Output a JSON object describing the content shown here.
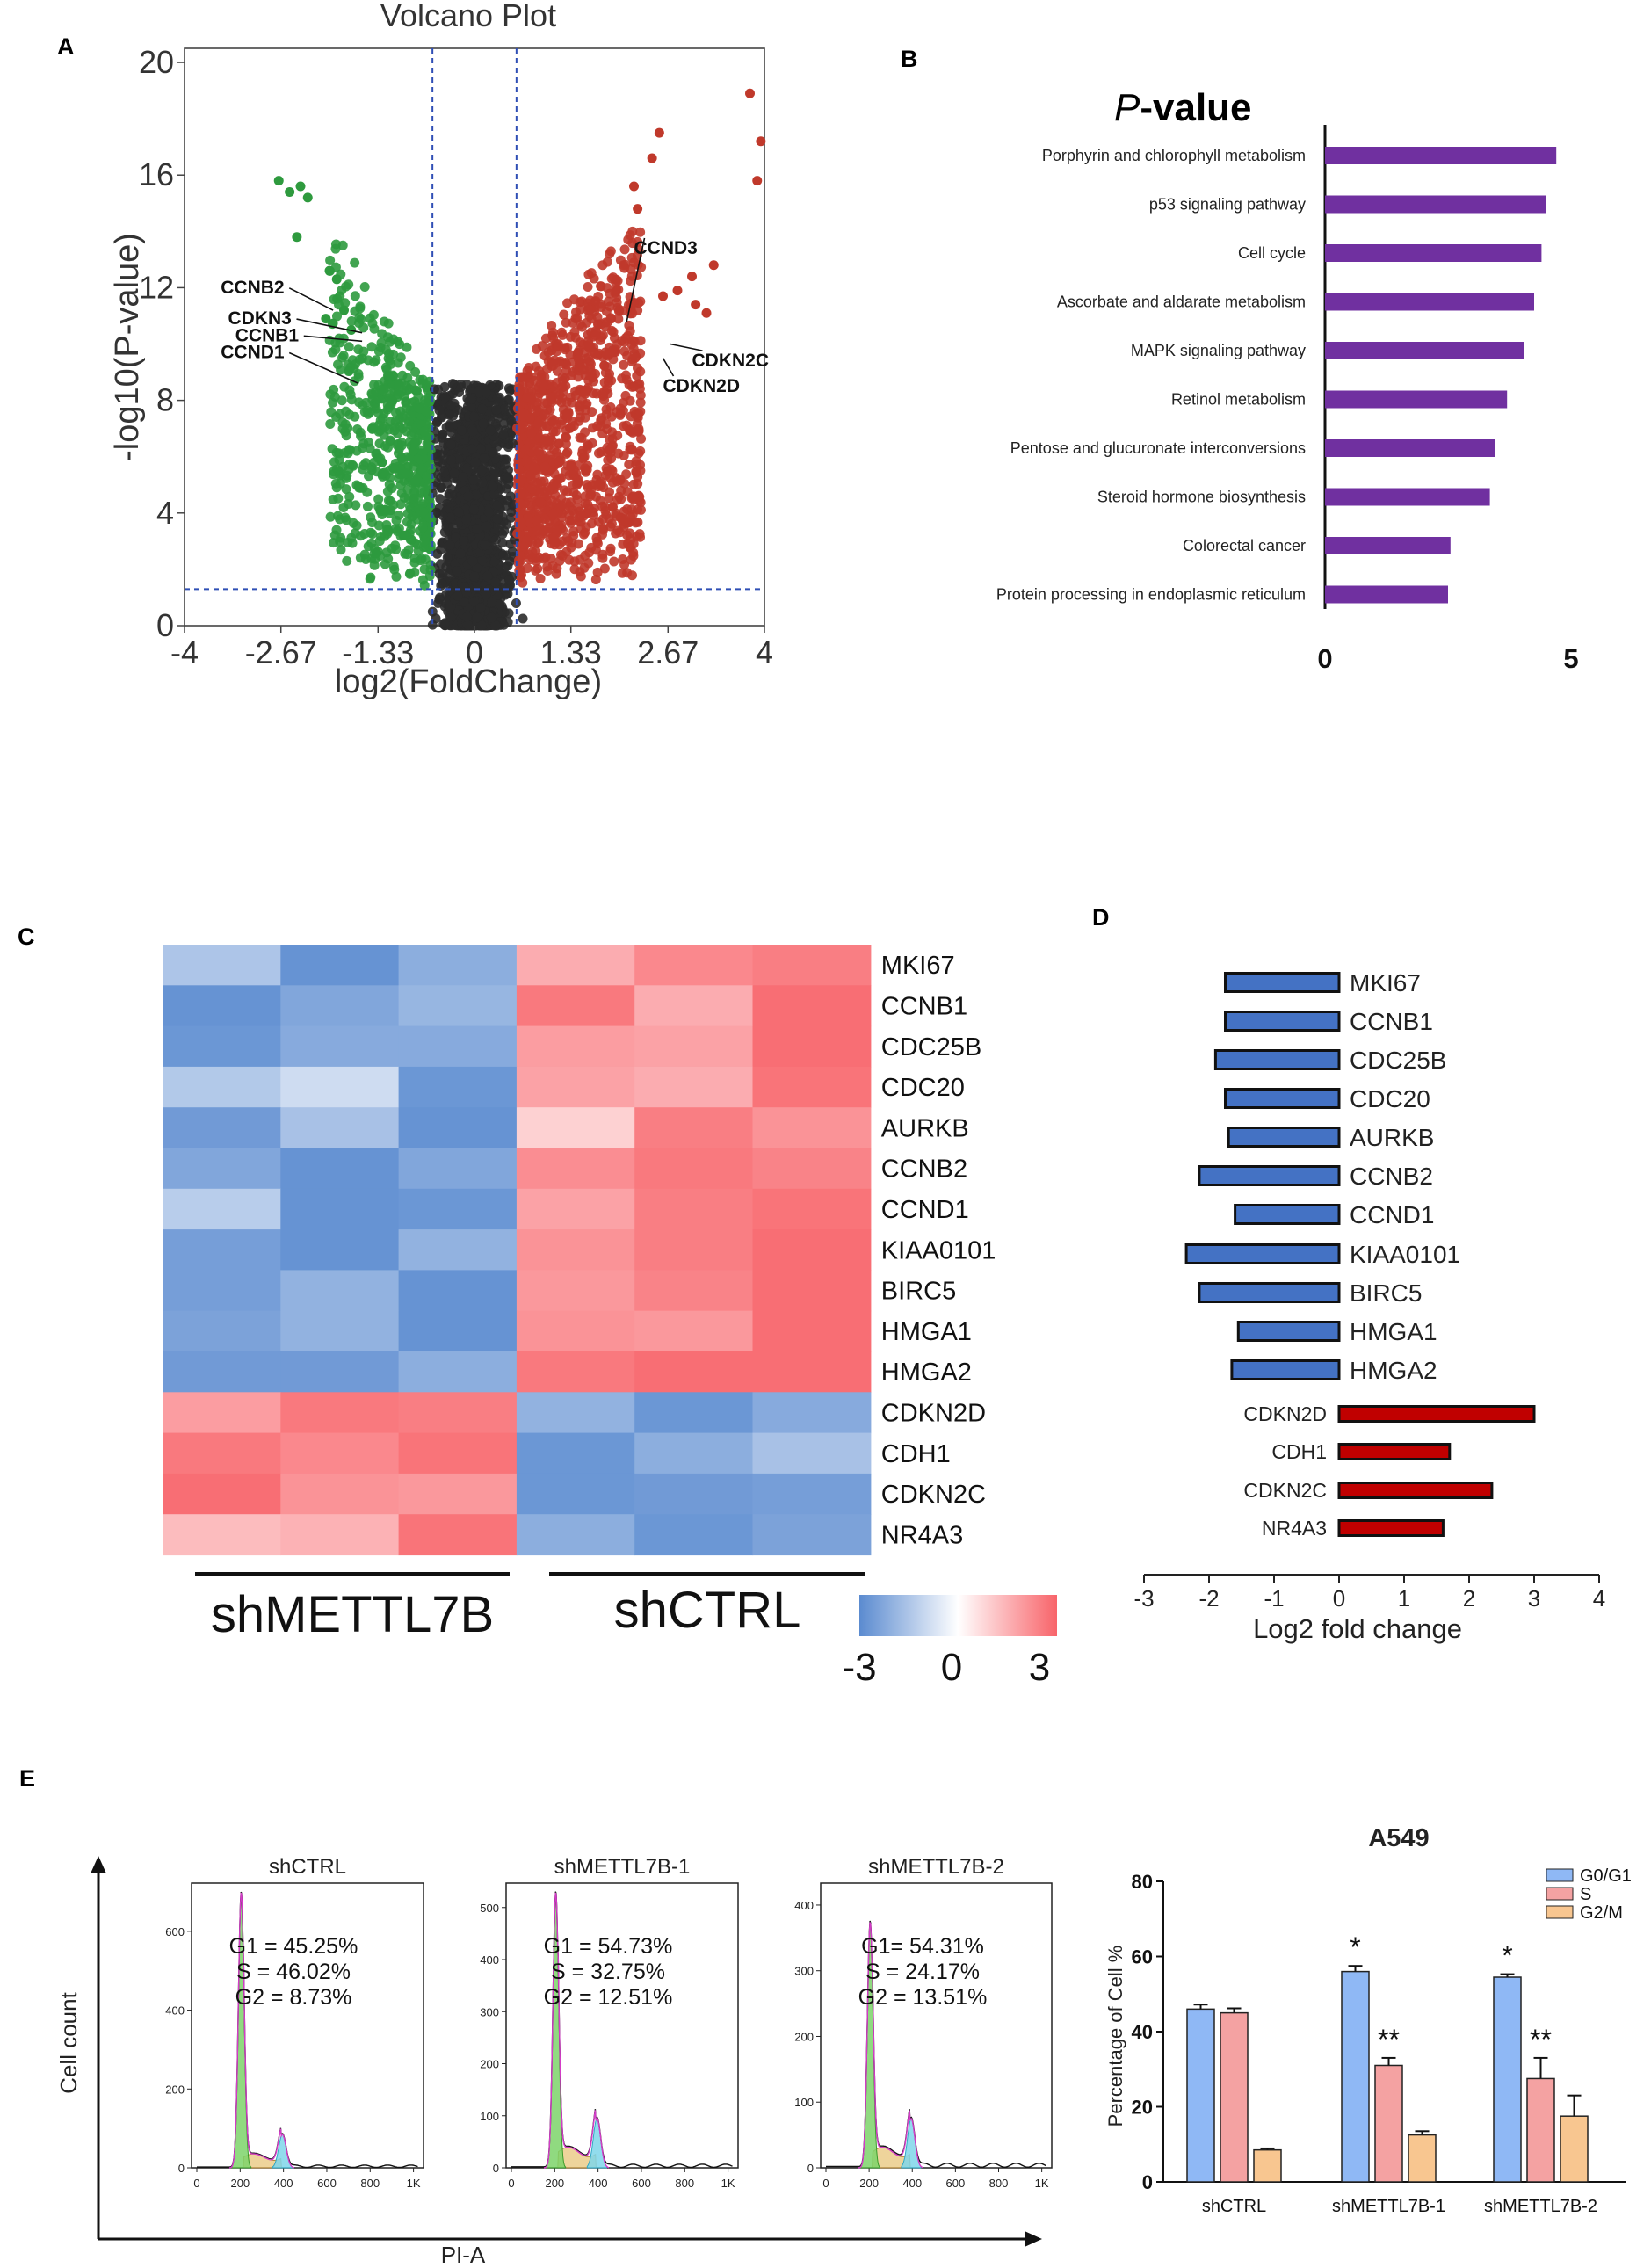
{
  "panel_labels": [
    "A",
    "B",
    "C",
    "D",
    "E"
  ],
  "chart_data": [
    {
      "id": "A",
      "type": "scatter",
      "title": "Volcano Plot",
      "xlabel": "log2(FoldChange)",
      "ylabel": "-log10(P-value)",
      "xlim": [
        -4,
        4
      ],
      "ylim": [
        0,
        20.5
      ],
      "xticks": [
        "-4",
        "-2.67",
        "-1.33",
        "0",
        "1.33",
        "2.67",
        "4"
      ],
      "xtick_values": [
        -4,
        -2.67,
        -1.33,
        0,
        1.33,
        2.67,
        4
      ],
      "yticks": [
        "0",
        "4",
        "8",
        "12",
        "16",
        "20"
      ],
      "ytick_values": [
        0,
        4,
        8,
        12,
        16,
        20
      ],
      "thresholds": {
        "fc": [
          -0.58,
          0.58
        ],
        "p": 1.3
      },
      "colors": {
        "down": "#2e9a3e",
        "ns": "#2b2b2b",
        "up": "#c0392b",
        "threshold": "#2f4fb5"
      },
      "highlight_points": [
        {
          "name": "down",
          "points": [
            [
              -2.7,
              15.8
            ],
            [
              -2.55,
              15.4
            ],
            [
              -2.4,
              15.6
            ],
            [
              -2.3,
              15.2
            ],
            [
              -2.45,
              13.8
            ],
            [
              -2.0,
              12.6
            ],
            [
              -1.9,
              12.3
            ],
            [
              -1.8,
              11.2
            ],
            [
              -2.05,
              10.9
            ],
            [
              -1.7,
              10.5
            ]
          ]
        },
        {
          "name": "up",
          "points": [
            [
              3.8,
              18.9
            ],
            [
              3.95,
              17.2
            ],
            [
              3.9,
              15.8
            ],
            [
              2.55,
              17.5
            ],
            [
              2.45,
              16.6
            ],
            [
              2.2,
              15.6
            ],
            [
              2.25,
              14.8
            ],
            [
              3.3,
              12.8
            ],
            [
              3.0,
              12.4
            ],
            [
              2.8,
              11.9
            ],
            [
              3.05,
              11.4
            ],
            [
              3.2,
              11.1
            ],
            [
              2.6,
              11.7
            ]
          ]
        }
      ],
      "annotations": [
        {
          "text": "CCNB2",
          "at": [
            -1.95,
            11.2
          ],
          "label": [
            -3.5,
            11.8
          ]
        },
        {
          "text": "CDKN3",
          "at": [
            -1.55,
            10.4
          ],
          "label": [
            -3.4,
            10.7
          ]
        },
        {
          "text": "CCNB1",
          "at": [
            -1.55,
            10.1
          ],
          "label": [
            -3.3,
            10.1
          ]
        },
        {
          "text": "CCND1",
          "at": [
            -1.6,
            8.6
          ],
          "label": [
            -3.5,
            9.5
          ]
        },
        {
          "text": "CCND3",
          "at": [
            2.1,
            10.8
          ],
          "label": [
            2.2,
            13.2
          ]
        },
        {
          "text": "CDKN2C",
          "at": [
            2.7,
            10.0
          ],
          "label": [
            3.0,
            9.2
          ]
        },
        {
          "text": "CDKN2D",
          "at": [
            2.6,
            9.5
          ],
          "label": [
            2.6,
            8.3
          ]
        }
      ]
    },
    {
      "id": "B",
      "type": "bar",
      "orientation": "horizontal",
      "title_italic": "P",
      "title_rest": "-value",
      "categories": [
        "Porphyrin and chlorophyll metabolism",
        "p53 signaling pathway",
        "Cell cycle",
        "Ascorbate and aldarate metabolism",
        "MAPK signaling pathway",
        "Retinol metabolism",
        "Pentose and glucuronate interconversions",
        "Steroid hormone biosynthesis",
        "Colorectal cancer",
        "Protein processing in endoplasmic reticulum"
      ],
      "values": [
        4.7,
        4.5,
        4.4,
        4.25,
        4.05,
        3.7,
        3.45,
        3.35,
        2.55,
        2.5
      ],
      "xlim": [
        0,
        5
      ],
      "xticks": [
        "0",
        "5"
      ],
      "color": "#7030a0"
    },
    {
      "id": "C",
      "type": "heatmap",
      "rows": [
        "MKI67",
        "CCNB1",
        "CDC25B",
        "CDC20",
        "AURKB",
        "CCNB2",
        "CCND1",
        "KIAA0101",
        "BIRC5",
        "HMGA1",
        "HMGA2",
        "CDKN2D",
        "CDH1",
        "CDKN2C",
        "NR4A3"
      ],
      "groups": [
        "shMETTL7B",
        "shCTRL"
      ],
      "columns_per_group": 3,
      "values": [
        [
          -1.5,
          -2.8,
          -2.1,
          1.6,
          2.3,
          2.5
        ],
        [
          -2.8,
          -2.3,
          -1.9,
          2.6,
          1.6,
          2.8
        ],
        [
          -2.7,
          -2.2,
          -2.2,
          1.9,
          1.8,
          2.8
        ],
        [
          -1.4,
          -0.9,
          -2.7,
          1.8,
          1.6,
          2.7
        ],
        [
          -2.6,
          -1.6,
          -2.8,
          0.9,
          2.5,
          2.1
        ],
        [
          -2.3,
          -2.8,
          -2.3,
          2.2,
          2.6,
          2.4
        ],
        [
          -1.3,
          -2.8,
          -2.7,
          1.8,
          2.5,
          2.7
        ],
        [
          -2.5,
          -2.8,
          -2.0,
          2.1,
          2.5,
          2.8
        ],
        [
          -2.5,
          -2.0,
          -2.8,
          2.0,
          2.4,
          2.8
        ],
        [
          -2.4,
          -2.0,
          -2.8,
          2.1,
          2.0,
          2.8
        ],
        [
          -2.6,
          -2.6,
          -2.1,
          2.6,
          2.8,
          2.8
        ],
        [
          1.9,
          2.6,
          2.5,
          -2.0,
          -2.7,
          -2.2
        ],
        [
          2.6,
          2.3,
          2.7,
          -2.7,
          -2.1,
          -1.6
        ],
        [
          2.8,
          2.1,
          2.0,
          -2.7,
          -2.6,
          -2.5
        ],
        [
          1.3,
          1.5,
          2.7,
          -2.1,
          -2.7,
          -2.4
        ]
      ],
      "legend_ticks": [
        "-3",
        "0",
        "3"
      ],
      "range": [
        -3,
        3
      ],
      "colors": {
        "low": "#5b8bd0",
        "mid": "#ffffff",
        "high": "#f8646a"
      }
    },
    {
      "id": "D",
      "type": "bar",
      "orientation": "horizontal",
      "categories": [
        "MKI67",
        "CCNB1",
        "CDC25B",
        "CDC20",
        "AURKB",
        "CCNB2",
        "CCND1",
        "KIAA0101",
        "BIRC5",
        "HMGA1",
        "HMGA2",
        "CDKN2D",
        "CDH1",
        "CDKN2C",
        "NR4A3"
      ],
      "values": [
        -1.75,
        -1.75,
        -1.9,
        -1.75,
        -1.7,
        -2.15,
        -1.6,
        -2.35,
        -2.15,
        -1.55,
        -1.65,
        3.0,
        1.7,
        2.35,
        1.6
      ],
      "xlabel": "Log2 fold change",
      "xlim": [
        -3,
        4
      ],
      "xticks": [
        "-3",
        "-2",
        "-1",
        "0",
        "1",
        "2",
        "3",
        "4"
      ],
      "colors": {
        "down": "#4472c4",
        "up": "#c00000"
      }
    },
    {
      "id": "E_flow",
      "type": "line",
      "xlabel": "PI-A",
      "ylabel": "Cell count",
      "xticks": [
        "0",
        "200",
        "400",
        "600",
        "800",
        "1K"
      ],
      "panels": [
        {
          "title": "shCTRL",
          "stats": [
            "G1 = 45.25%",
            "S = 46.02%",
            "G2 = 8.73%"
          ],
          "yticks": [
            "0",
            "200",
            "400",
            "600"
          ],
          "ymax": 700,
          "g1_peak": 700,
          "g2_peak": 85
        },
        {
          "title": "shMETTL7B-1",
          "stats": [
            "G1 = 54.73%",
            "S = 32.75%",
            "G2 = 12.51%"
          ],
          "yticks": [
            "0",
            "100",
            "200",
            "300",
            "400",
            "500"
          ],
          "ymax": 530,
          "g1_peak": 530,
          "g2_peak": 95
        },
        {
          "title": "shMETTL7B-2",
          "stats": [
            "G1= 54.31%",
            "S = 24.17%",
            "G2 = 13.51%"
          ],
          "yticks": [
            "0",
            "100",
            "200",
            "300",
            "400"
          ],
          "ymax": 420,
          "g1_peak": 375,
          "g2_peak": 75
        }
      ]
    },
    {
      "id": "E_bar",
      "type": "bar",
      "title": "A549",
      "ylabel": "Percentage of Cell %",
      "categories": [
        "shCTRL",
        "shMETTL7B-1",
        "shMETTL7B-2"
      ],
      "ylim": [
        0,
        80
      ],
      "yticks": [
        "0",
        "20",
        "40",
        "60",
        "80"
      ],
      "series": [
        {
          "name": "G0/G1",
          "values": [
            46,
            56,
            54.5
          ],
          "errors": [
            1.2,
            1.5,
            0.8
          ],
          "color": "#8fb8f5"
        },
        {
          "name": "S",
          "values": [
            45,
            31,
            27.5
          ],
          "errors": [
            1.2,
            2.0,
            5.5
          ],
          "color": "#f4a2a2"
        },
        {
          "name": "G2/M",
          "values": [
            8.5,
            12.5,
            17.5
          ],
          "errors": [
            0.4,
            1.0,
            5.5
          ],
          "color": "#f8c690"
        }
      ],
      "significance": [
        {
          "category": 1,
          "series": 0,
          "mark": "*"
        },
        {
          "category": 1,
          "series": 1,
          "mark": "**"
        },
        {
          "category": 2,
          "series": 0,
          "mark": "*"
        },
        {
          "category": 2,
          "series": 1,
          "mark": "**"
        }
      ]
    }
  ]
}
